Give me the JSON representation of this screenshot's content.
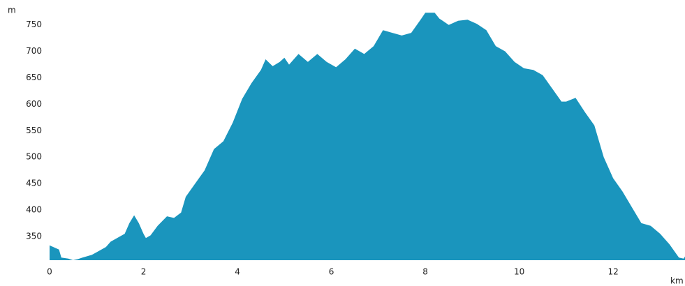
{
  "chart_data": {
    "type": "area",
    "y_label": "m",
    "x_label": "km",
    "color": "#1a95bd",
    "x": [
      0,
      0.2,
      0.25,
      0.4,
      0.5,
      0.6,
      0.7,
      0.9,
      1.0,
      1.2,
      1.3,
      1.5,
      1.6,
      1.7,
      1.8,
      1.9,
      2.0,
      2.05,
      2.15,
      2.3,
      2.5,
      2.65,
      2.8,
      2.9,
      3.1,
      3.3,
      3.5,
      3.7,
      3.9,
      4.1,
      4.3,
      4.5,
      4.6,
      4.75,
      4.9,
      5.0,
      5.1,
      5.3,
      5.5,
      5.7,
      5.9,
      6.1,
      6.3,
      6.5,
      6.7,
      6.9,
      7.0,
      7.1,
      7.3,
      7.5,
      7.7,
      7.9,
      8.0,
      8.2,
      8.3,
      8.5,
      8.7,
      8.9,
      9.1,
      9.3,
      9.5,
      9.7,
      9.9,
      10.1,
      10.3,
      10.5,
      10.7,
      10.9,
      11.0,
      11.2,
      11.4,
      11.6,
      11.8,
      12.0,
      12.2,
      12.4,
      12.6,
      12.8,
      13.0,
      13.2,
      13.4,
      13.5,
      13.53
    ],
    "values": [
      333,
      325,
      310,
      308,
      305,
      307,
      310,
      315,
      320,
      330,
      340,
      350,
      355,
      375,
      390,
      375,
      355,
      347,
      352,
      370,
      388,
      385,
      395,
      425,
      450,
      475,
      515,
      530,
      565,
      610,
      640,
      665,
      685,
      672,
      680,
      688,
      675,
      695,
      680,
      695,
      680,
      670,
      685,
      705,
      695,
      710,
      725,
      740,
      735,
      730,
      735,
      760,
      773,
      773,
      762,
      750,
      758,
      760,
      752,
      740,
      710,
      700,
      680,
      668,
      665,
      655,
      630,
      605,
      605,
      612,
      585,
      560,
      500,
      460,
      435,
      405,
      375,
      370,
      355,
      335,
      310,
      308,
      312
    ],
    "xlim": [
      0,
      13.53
    ],
    "xticks": [
      0,
      2,
      4,
      6,
      8,
      10,
      12
    ],
    "ylim": [
      305,
      780
    ],
    "yticks": [
      350,
      400,
      450,
      500,
      550,
      600,
      650,
      700,
      750
    ]
  }
}
